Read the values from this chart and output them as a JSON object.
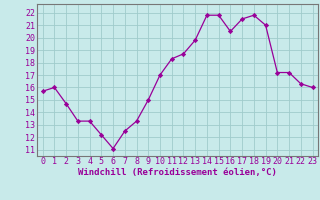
{
  "x": [
    0,
    1,
    2,
    3,
    4,
    5,
    6,
    7,
    8,
    9,
    10,
    11,
    12,
    13,
    14,
    15,
    16,
    17,
    18,
    19,
    20,
    21,
    22,
    23
  ],
  "y": [
    15.7,
    16.0,
    14.7,
    13.3,
    13.3,
    12.2,
    11.1,
    12.5,
    13.3,
    15.0,
    17.0,
    18.3,
    18.7,
    19.8,
    21.8,
    21.8,
    20.5,
    21.5,
    21.8,
    21.0,
    17.2,
    17.2,
    16.3,
    16.0
  ],
  "line_color": "#990099",
  "marker": "D",
  "marker_size": 2.2,
  "bg_color": "#c8eaea",
  "grid_color": "#a0cccc",
  "xlabel": "Windchill (Refroidissement éolien,°C)",
  "xlabel_color": "#990099",
  "xlabel_fontsize": 6.5,
  "ylabel_ticks": [
    11,
    12,
    13,
    14,
    15,
    16,
    17,
    18,
    19,
    20,
    21,
    22
  ],
  "ylim": [
    10.5,
    22.7
  ],
  "xlim": [
    -0.5,
    23.5
  ],
  "tick_fontsize": 6.0,
  "tick_color": "#990099",
  "spine_color": "#777777",
  "linewidth": 0.9
}
